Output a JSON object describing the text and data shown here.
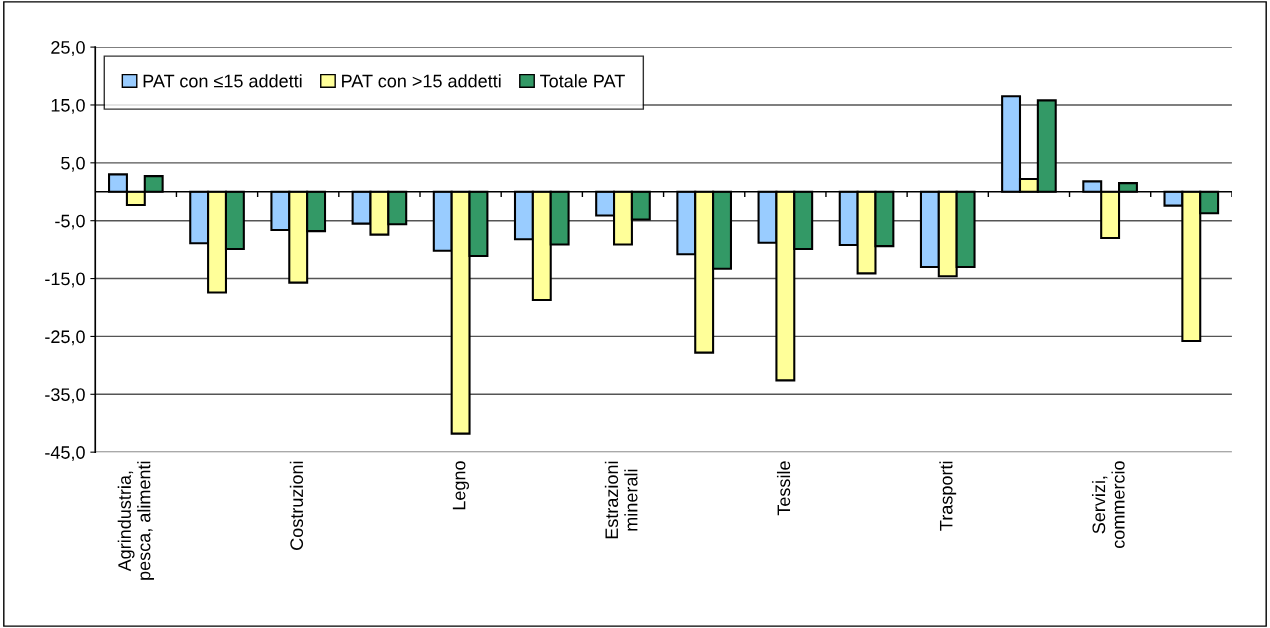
{
  "chart_data": {
    "type": "bar",
    "categories": [
      "Agrindustria,\npesca, alimenti",
      null,
      "Costruzioni",
      null,
      "Legno",
      null,
      "Estrazioni\nminerali",
      null,
      "Tessile",
      null,
      "Trasporti",
      null,
      "Servizi,\ncommercio",
      null
    ],
    "series": [
      {
        "name": "PAT con ≤15 addetti",
        "color": "#99ccff",
        "values": [
          3.0,
          -8.9,
          -6.6,
          -5.5,
          -10.2,
          -8.2,
          -4.1,
          -10.8,
          -8.8,
          -9.2,
          -13.0,
          16.5,
          1.8,
          -2.4
        ]
      },
      {
        "name": "PAT con >15 addetti",
        "color": "#ffff99",
        "values": [
          -2.3,
          -17.4,
          -15.7,
          -7.4,
          -41.8,
          -18.7,
          -9.1,
          -27.8,
          -32.6,
          -14.1,
          -14.6,
          2.2,
          -8.0,
          -25.8
        ]
      },
      {
        "name": "Totale PAT",
        "color": "#339966",
        "values": [
          2.7,
          -9.9,
          -6.8,
          -5.6,
          -11.1,
          -9.1,
          -4.8,
          -13.3,
          -9.9,
          -9.4,
          -13.0,
          15.8,
          1.5,
          -3.7
        ]
      }
    ],
    "ylim": [
      -45,
      25
    ],
    "yticks": [
      {
        "value": 25,
        "label": "25,0"
      },
      {
        "value": 15,
        "label": "15,0"
      },
      {
        "value": 5,
        "label": "5,0"
      },
      {
        "value": -5,
        "label": "-5,0"
      },
      {
        "value": -15,
        "label": "-15,0"
      },
      {
        "value": -25,
        "label": "-25,0"
      },
      {
        "value": -35,
        "label": "-35,0"
      },
      {
        "value": -45,
        "label": "-45,0"
      }
    ],
    "grid": "y",
    "legend": "top left"
  }
}
